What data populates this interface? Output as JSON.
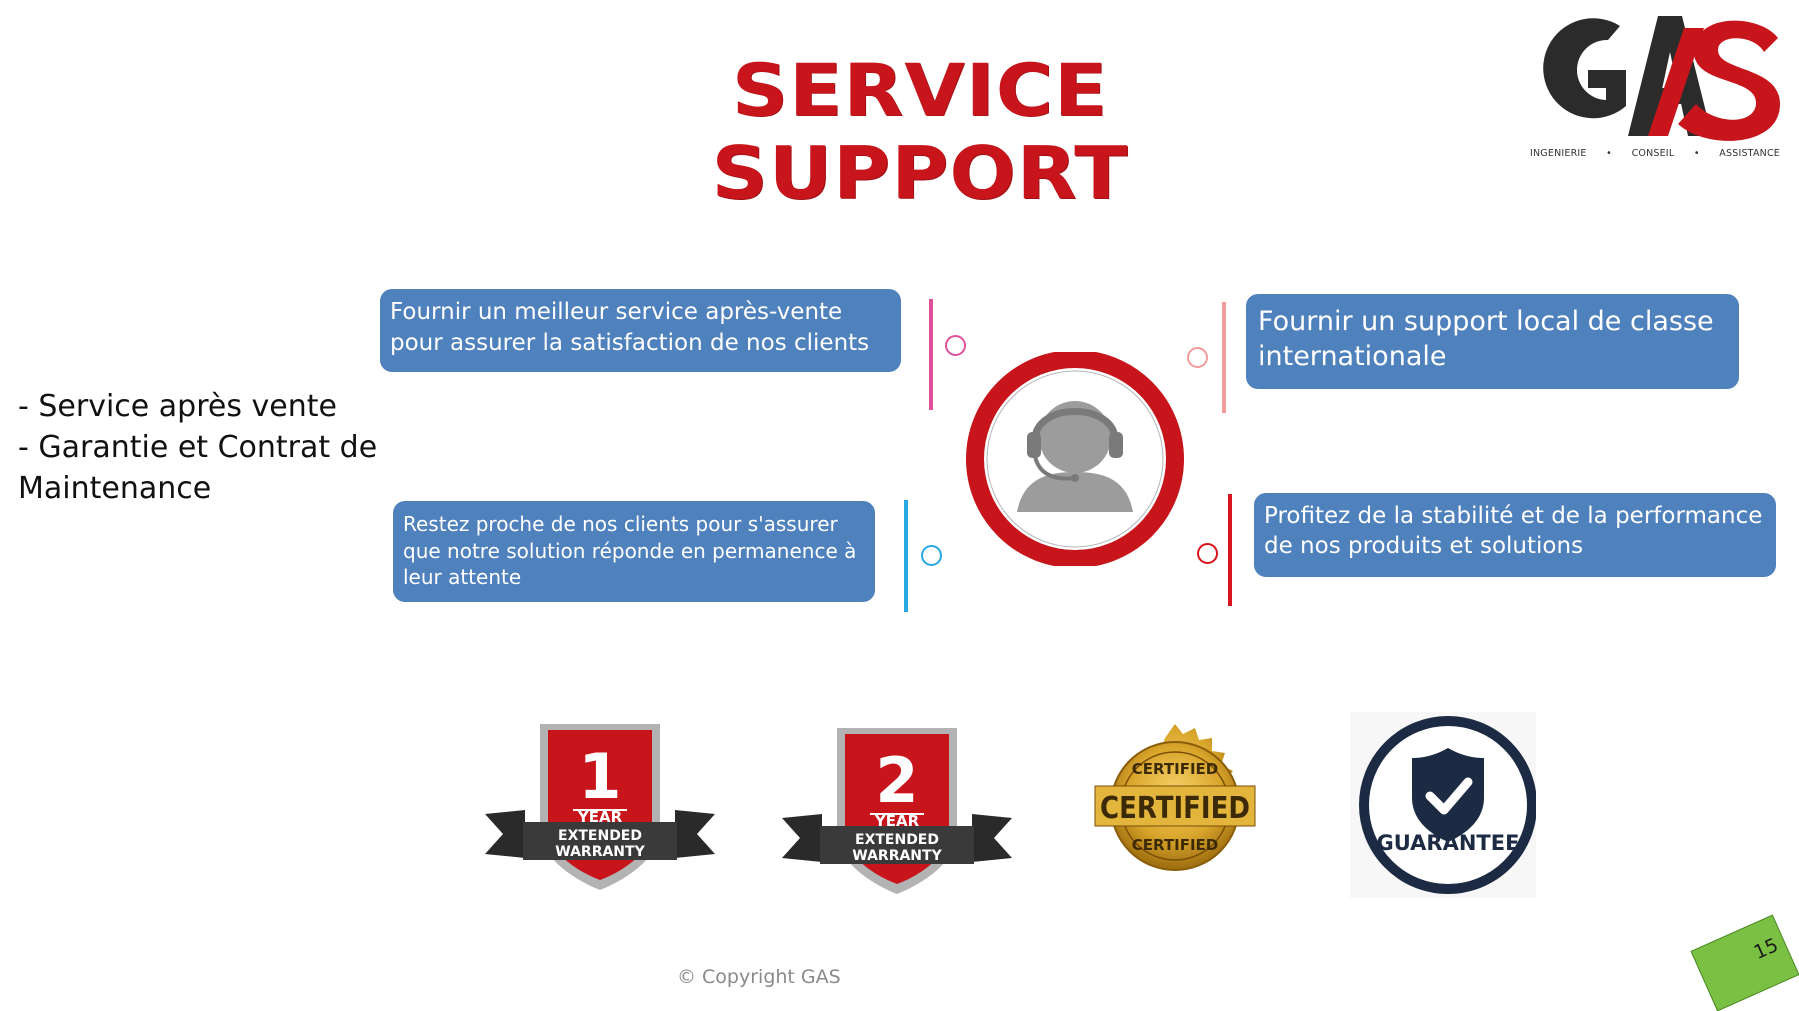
{
  "title": "SERVICE SUPPORT",
  "logo": {
    "text": "GAS",
    "tagline": [
      "INGENIERIE",
      "•",
      "CONSEIL",
      "•",
      "ASSISTANCE"
    ]
  },
  "bullets": [
    "- Service après vente",
    "- Garantie et Contrat de\nMaintenance"
  ],
  "boxes": {
    "top_left": "Fournir un meilleur service après-vente pour assurer la satisfaction de nos clients",
    "top_right": "Fournir un support local de classe internationale",
    "bottom_left": "Restez proche de nos clients pour s'assurer que notre solution réponde en permanence à leur attente",
    "bottom_right": "Profitez de la stabilité et de la performance de nos produits et solutions"
  },
  "badges": {
    "one_year": {
      "number": "1",
      "unit": "YEAR",
      "line1": "EXTENDED",
      "line2": "WARRANTY"
    },
    "two_year": {
      "number": "2",
      "unit": "YEAR",
      "line1": "EXTENDED",
      "line2": "WARRANTY"
    },
    "certified": {
      "main": "CERTIFIED",
      "arc": "CERTIFIED"
    },
    "guarantee": {
      "label": "GUARANTEE"
    }
  },
  "colors": {
    "title_red": "#c8151b",
    "box_blue": "#4f81bd",
    "line_pink": "#e0519a",
    "line_salmon": "#f29b9b",
    "line_cyan": "#28a9e0",
    "line_red": "#d8141c",
    "logo_dark": "#2b2b2b",
    "page_green": "#7ac143"
  },
  "copyright": "© Copyright GAS",
  "page_number": "15"
}
